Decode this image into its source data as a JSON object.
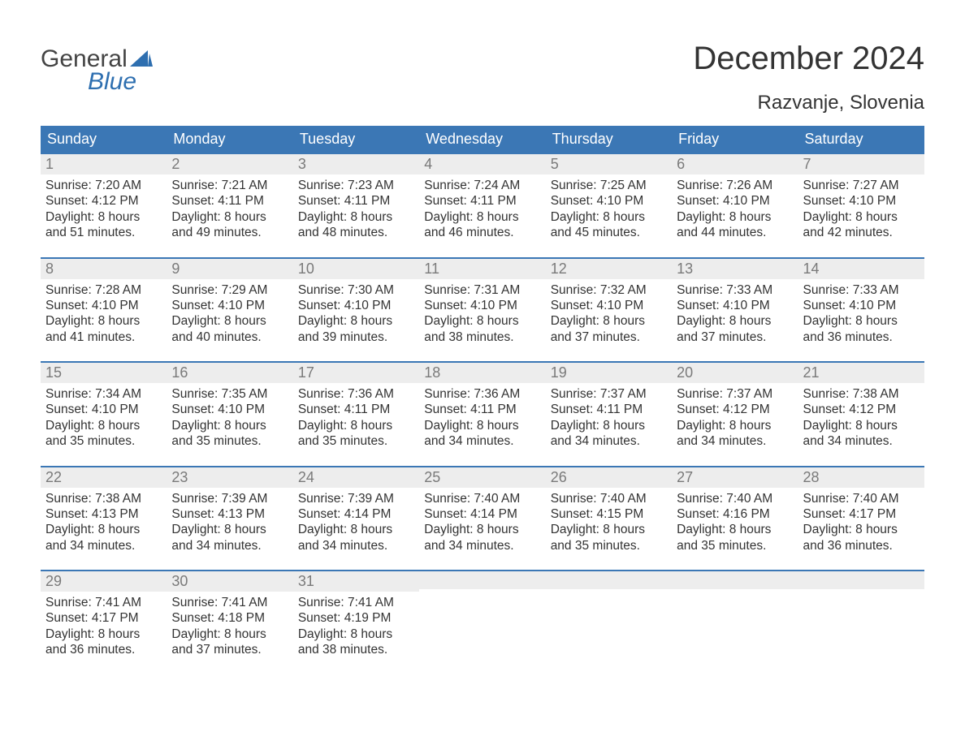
{
  "brand": {
    "word1": "General",
    "word2": "Blue"
  },
  "title": "December 2024",
  "location": "Razvanje, Slovenia",
  "colors": {
    "header_bg": "#3b77b5",
    "header_text": "#ffffff",
    "daynum_bg": "#ededed",
    "daynum_text": "#7a7a7a",
    "body_text": "#333333",
    "rule": "#3b77b5",
    "brand_blue": "#2e6fb0",
    "page_bg": "#ffffff"
  },
  "daynames": [
    "Sunday",
    "Monday",
    "Tuesday",
    "Wednesday",
    "Thursday",
    "Friday",
    "Saturday"
  ],
  "weeks": [
    [
      {
        "n": "1",
        "l1": "Sunrise: 7:20 AM",
        "l2": "Sunset: 4:12 PM",
        "l3": "Daylight: 8 hours",
        "l4": "and 51 minutes."
      },
      {
        "n": "2",
        "l1": "Sunrise: 7:21 AM",
        "l2": "Sunset: 4:11 PM",
        "l3": "Daylight: 8 hours",
        "l4": "and 49 minutes."
      },
      {
        "n": "3",
        "l1": "Sunrise: 7:23 AM",
        "l2": "Sunset: 4:11 PM",
        "l3": "Daylight: 8 hours",
        "l4": "and 48 minutes."
      },
      {
        "n": "4",
        "l1": "Sunrise: 7:24 AM",
        "l2": "Sunset: 4:11 PM",
        "l3": "Daylight: 8 hours",
        "l4": "and 46 minutes."
      },
      {
        "n": "5",
        "l1": "Sunrise: 7:25 AM",
        "l2": "Sunset: 4:10 PM",
        "l3": "Daylight: 8 hours",
        "l4": "and 45 minutes."
      },
      {
        "n": "6",
        "l1": "Sunrise: 7:26 AM",
        "l2": "Sunset: 4:10 PM",
        "l3": "Daylight: 8 hours",
        "l4": "and 44 minutes."
      },
      {
        "n": "7",
        "l1": "Sunrise: 7:27 AM",
        "l2": "Sunset: 4:10 PM",
        "l3": "Daylight: 8 hours",
        "l4": "and 42 minutes."
      }
    ],
    [
      {
        "n": "8",
        "l1": "Sunrise: 7:28 AM",
        "l2": "Sunset: 4:10 PM",
        "l3": "Daylight: 8 hours",
        "l4": "and 41 minutes."
      },
      {
        "n": "9",
        "l1": "Sunrise: 7:29 AM",
        "l2": "Sunset: 4:10 PM",
        "l3": "Daylight: 8 hours",
        "l4": "and 40 minutes."
      },
      {
        "n": "10",
        "l1": "Sunrise: 7:30 AM",
        "l2": "Sunset: 4:10 PM",
        "l3": "Daylight: 8 hours",
        "l4": "and 39 minutes."
      },
      {
        "n": "11",
        "l1": "Sunrise: 7:31 AM",
        "l2": "Sunset: 4:10 PM",
        "l3": "Daylight: 8 hours",
        "l4": "and 38 minutes."
      },
      {
        "n": "12",
        "l1": "Sunrise: 7:32 AM",
        "l2": "Sunset: 4:10 PM",
        "l3": "Daylight: 8 hours",
        "l4": "and 37 minutes."
      },
      {
        "n": "13",
        "l1": "Sunrise: 7:33 AM",
        "l2": "Sunset: 4:10 PM",
        "l3": "Daylight: 8 hours",
        "l4": "and 37 minutes."
      },
      {
        "n": "14",
        "l1": "Sunrise: 7:33 AM",
        "l2": "Sunset: 4:10 PM",
        "l3": "Daylight: 8 hours",
        "l4": "and 36 minutes."
      }
    ],
    [
      {
        "n": "15",
        "l1": "Sunrise: 7:34 AM",
        "l2": "Sunset: 4:10 PM",
        "l3": "Daylight: 8 hours",
        "l4": "and 35 minutes."
      },
      {
        "n": "16",
        "l1": "Sunrise: 7:35 AM",
        "l2": "Sunset: 4:10 PM",
        "l3": "Daylight: 8 hours",
        "l4": "and 35 minutes."
      },
      {
        "n": "17",
        "l1": "Sunrise: 7:36 AM",
        "l2": "Sunset: 4:11 PM",
        "l3": "Daylight: 8 hours",
        "l4": "and 35 minutes."
      },
      {
        "n": "18",
        "l1": "Sunrise: 7:36 AM",
        "l2": "Sunset: 4:11 PM",
        "l3": "Daylight: 8 hours",
        "l4": "and 34 minutes."
      },
      {
        "n": "19",
        "l1": "Sunrise: 7:37 AM",
        "l2": "Sunset: 4:11 PM",
        "l3": "Daylight: 8 hours",
        "l4": "and 34 minutes."
      },
      {
        "n": "20",
        "l1": "Sunrise: 7:37 AM",
        "l2": "Sunset: 4:12 PM",
        "l3": "Daylight: 8 hours",
        "l4": "and 34 minutes."
      },
      {
        "n": "21",
        "l1": "Sunrise: 7:38 AM",
        "l2": "Sunset: 4:12 PM",
        "l3": "Daylight: 8 hours",
        "l4": "and 34 minutes."
      }
    ],
    [
      {
        "n": "22",
        "l1": "Sunrise: 7:38 AM",
        "l2": "Sunset: 4:13 PM",
        "l3": "Daylight: 8 hours",
        "l4": "and 34 minutes."
      },
      {
        "n": "23",
        "l1": "Sunrise: 7:39 AM",
        "l2": "Sunset: 4:13 PM",
        "l3": "Daylight: 8 hours",
        "l4": "and 34 minutes."
      },
      {
        "n": "24",
        "l1": "Sunrise: 7:39 AM",
        "l2": "Sunset: 4:14 PM",
        "l3": "Daylight: 8 hours",
        "l4": "and 34 minutes."
      },
      {
        "n": "25",
        "l1": "Sunrise: 7:40 AM",
        "l2": "Sunset: 4:14 PM",
        "l3": "Daylight: 8 hours",
        "l4": "and 34 minutes."
      },
      {
        "n": "26",
        "l1": "Sunrise: 7:40 AM",
        "l2": "Sunset: 4:15 PM",
        "l3": "Daylight: 8 hours",
        "l4": "and 35 minutes."
      },
      {
        "n": "27",
        "l1": "Sunrise: 7:40 AM",
        "l2": "Sunset: 4:16 PM",
        "l3": "Daylight: 8 hours",
        "l4": "and 35 minutes."
      },
      {
        "n": "28",
        "l1": "Sunrise: 7:40 AM",
        "l2": "Sunset: 4:17 PM",
        "l3": "Daylight: 8 hours",
        "l4": "and 36 minutes."
      }
    ],
    [
      {
        "n": "29",
        "l1": "Sunrise: 7:41 AM",
        "l2": "Sunset: 4:17 PM",
        "l3": "Daylight: 8 hours",
        "l4": "and 36 minutes."
      },
      {
        "n": "30",
        "l1": "Sunrise: 7:41 AM",
        "l2": "Sunset: 4:18 PM",
        "l3": "Daylight: 8 hours",
        "l4": "and 37 minutes."
      },
      {
        "n": "31",
        "l1": "Sunrise: 7:41 AM",
        "l2": "Sunset: 4:19 PM",
        "l3": "Daylight: 8 hours",
        "l4": "and 38 minutes."
      },
      null,
      null,
      null,
      null
    ]
  ]
}
